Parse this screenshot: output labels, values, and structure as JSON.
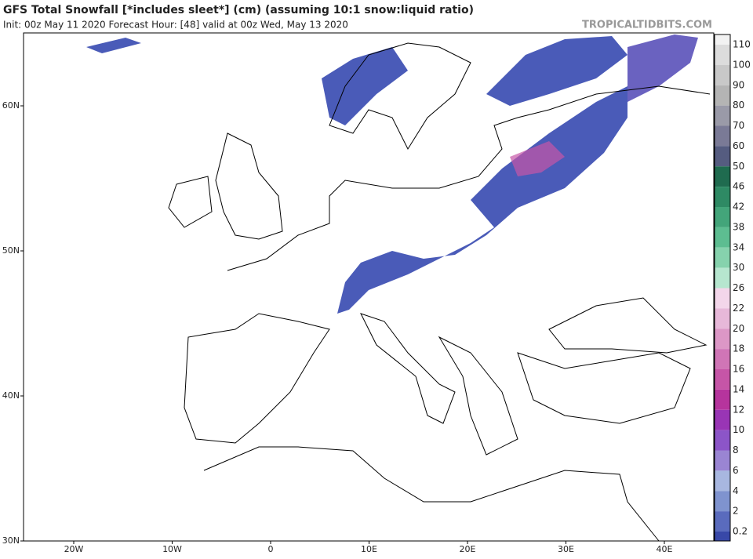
{
  "header": {
    "title": "GFS Total Snowfall [*includes sleet*] (cm) (assuming 10:1 snow:liquid ratio)",
    "subtitle": "Init: 00z May 11 2020   Forecast Hour: [48]   valid at 00z Wed, May 13 2020",
    "watermark": "TROPICALTIDBITS.COM"
  },
  "map": {
    "lat_labels": [
      {
        "value": 60,
        "label": "60N"
      },
      {
        "value": 50,
        "label": "50N"
      },
      {
        "value": 40,
        "label": "40N"
      },
      {
        "value": 30,
        "label": "30N"
      }
    ],
    "lon_labels": [
      {
        "value": -20,
        "label": "20W"
      },
      {
        "value": -10,
        "label": "10W"
      },
      {
        "value": 0,
        "label": "0"
      },
      {
        "value": 10,
        "label": "10E"
      },
      {
        "value": 20,
        "label": "20E"
      },
      {
        "value": 30,
        "label": "30E"
      },
      {
        "value": 40,
        "label": "40E"
      }
    ]
  },
  "colorbar": {
    "labels": [
      "110",
      "100",
      "90",
      "80",
      "70",
      "60",
      "50",
      "46",
      "42",
      "38",
      "34",
      "30",
      "26",
      "22",
      "20",
      "18",
      "16",
      "14",
      "12",
      "10",
      "8",
      "6",
      "4",
      "2",
      "0.2"
    ],
    "colors": [
      "#f2f2f2",
      "#dcdcdc",
      "#c8c8c8",
      "#b4b4b4",
      "#9a9aa8",
      "#7a7a96",
      "#555c80",
      "#1f6b4f",
      "#2e8a64",
      "#43a57a",
      "#5dbd91",
      "#86d2ad",
      "#b6e6cf",
      "#f3d6ea",
      "#e7b8d9",
      "#dc97c6",
      "#d075b6",
      "#c655a7",
      "#b6349d",
      "#9935b5",
      "#8c55c8",
      "#9a85d3",
      "#a8b7e0",
      "#7f93cf",
      "#5a6bbd",
      "#3848a8"
    ]
  }
}
